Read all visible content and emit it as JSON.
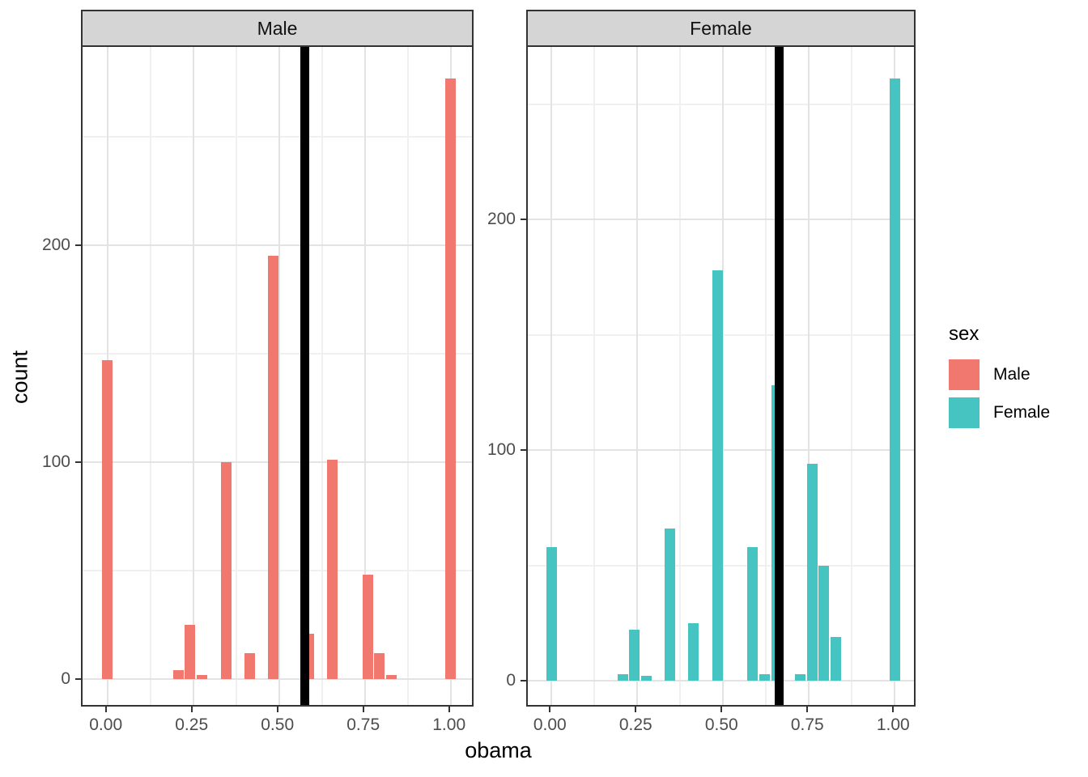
{
  "figure": {
    "x_axis_title": "obama",
    "y_axis_title": "count"
  },
  "legend": {
    "title": "sex",
    "items": [
      {
        "label": "Male",
        "color": "#F1786F"
      },
      {
        "label": "Female",
        "color": "#45C4C1"
      }
    ]
  },
  "chart_data": {
    "type": "bar",
    "subtype": "faceted-histogram",
    "title": "",
    "xlabel": "obama",
    "ylabel": "count",
    "grid": "on",
    "legend_position": "right",
    "x_ticks": [
      0,
      0.25,
      0.5,
      0.75,
      1
    ],
    "x_tick_labels": [
      "0.00",
      "0.25",
      "0.50",
      "0.75",
      "1.00"
    ],
    "y_ticks": [
      0,
      100,
      200
    ],
    "y_tick_labels": [
      "0",
      "100",
      "200"
    ],
    "x_minor_ticks": [
      0.125,
      0.375,
      0.625,
      0.875
    ],
    "y_minor_ticks": [
      50,
      150,
      250
    ],
    "binwidth": 0.0345,
    "panels": [
      {
        "facet": "Male",
        "color": "#F1786F",
        "vline_x": 0.574,
        "xlim": [
          -0.072,
          1.072
        ],
        "ylim": [
          0,
          291
        ],
        "bins": [
          {
            "x": 0.0,
            "count": 147
          },
          {
            "x": 0.207,
            "count": 4
          },
          {
            "x": 0.241,
            "count": 25
          },
          {
            "x": 0.276,
            "count": 2
          },
          {
            "x": 0.345,
            "count": 100
          },
          {
            "x": 0.414,
            "count": 12
          },
          {
            "x": 0.483,
            "count": 195
          },
          {
            "x": 0.586,
            "count": 21
          },
          {
            "x": 0.655,
            "count": 101
          },
          {
            "x": 0.759,
            "count": 48
          },
          {
            "x": 0.793,
            "count": 12
          },
          {
            "x": 0.828,
            "count": 2
          },
          {
            "x": 1.0,
            "count": 277
          }
        ]
      },
      {
        "facet": "Female",
        "color": "#45C4C1",
        "vline_x": 0.662,
        "xlim": [
          -0.069,
          1.066
        ],
        "ylim": [
          0,
          274
        ],
        "bins": [
          {
            "x": 0.0,
            "count": 58
          },
          {
            "x": 0.207,
            "count": 3
          },
          {
            "x": 0.241,
            "count": 22
          },
          {
            "x": 0.276,
            "count": 2
          },
          {
            "x": 0.345,
            "count": 66
          },
          {
            "x": 0.414,
            "count": 25
          },
          {
            "x": 0.483,
            "count": 178
          },
          {
            "x": 0.586,
            "count": 58
          },
          {
            "x": 0.621,
            "count": 3
          },
          {
            "x": 0.655,
            "count": 128
          },
          {
            "x": 0.724,
            "count": 3
          },
          {
            "x": 0.759,
            "count": 94
          },
          {
            "x": 0.793,
            "count": 50
          },
          {
            "x": 0.828,
            "count": 19
          },
          {
            "x": 1.0,
            "count": 261
          }
        ]
      }
    ]
  }
}
